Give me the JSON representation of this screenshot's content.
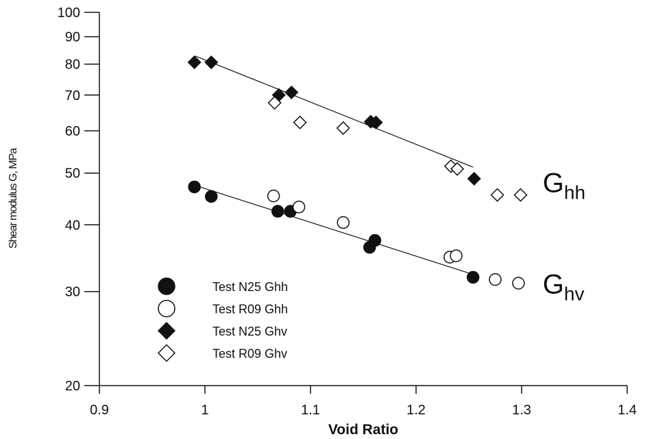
{
  "chart_data": {
    "type": "scatter",
    "xlabel": "Void Ratio",
    "ylabel": "Shear modulus G, MPa",
    "xlim": [
      0.9,
      1.4
    ],
    "xticks": [
      0.9,
      1,
      1.1,
      1.2,
      1.3,
      1.4
    ],
    "ylim": [
      20,
      100
    ],
    "yticks": [
      20,
      30,
      40,
      50,
      60,
      70,
      80,
      90,
      100
    ],
    "log_y": true,
    "grid": false,
    "legend": "lower left",
    "series": [
      {
        "name": "Test N25 Ghh",
        "marker": "circle",
        "filled": true,
        "color": "#111111",
        "x": [
          0.99,
          1.006,
          1.069,
          1.081,
          1.156,
          1.161,
          1.254
        ],
        "values": [
          47.1,
          45.2,
          42.4,
          42.4,
          36.3,
          37.4,
          31.9
        ]
      },
      {
        "name": "Test R09 Ghh",
        "marker": "circle",
        "filled": false,
        "color": "#111111",
        "x": [
          1.065,
          1.089,
          1.131,
          1.232,
          1.238,
          1.275,
          1.297
        ],
        "values": [
          45.3,
          43.2,
          40.4,
          34.8,
          35.0,
          31.6,
          31.1
        ]
      },
      {
        "name": "Test N25 Ghv",
        "marker": "diamond",
        "filled": true,
        "color": "#111111",
        "x": [
          0.99,
          1.006,
          1.07,
          1.082,
          1.157,
          1.162,
          1.255
        ],
        "values": [
          80.6,
          80.6,
          70.0,
          70.8,
          62.4,
          62.2,
          48.8
        ]
      },
      {
        "name": "Test R09 Ghv",
        "marker": "diamond",
        "filled": false,
        "color": "#111111",
        "x": [
          1.066,
          1.09,
          1.131,
          1.233,
          1.239,
          1.277,
          1.299
        ],
        "values": [
          67.7,
          62.2,
          60.7,
          51.5,
          50.9,
          45.5,
          45.5
        ]
      }
    ],
    "trendlines": [
      {
        "x": [
          0.991,
          1.254
        ],
        "values": [
          82.8,
          51.3
        ]
      },
      {
        "x": [
          0.991,
          1.254
        ],
        "values": [
          47.4,
          32.3
        ]
      }
    ],
    "annotations": [
      {
        "text": "G",
        "subscript": "hh",
        "x": 1.32,
        "y": 48
      },
      {
        "text": "G",
        "subscript": "hv",
        "x": 1.32,
        "y": 31
      }
    ]
  }
}
